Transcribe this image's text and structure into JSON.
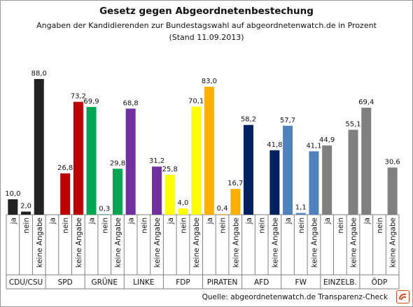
{
  "chart_data": {
    "type": "bar",
    "title": "Gesetz gegen Abgeordnetenbestechung",
    "subtitle_line1": "Angaben der Kandidierenden zur Bundestagswahl auf abgeordnetenwatch.de  in Prozent",
    "subtitle_line2": "(Stand 11.09.2013)",
    "source": "Quelle: abgeordnetenwatch.de Transparenz-Check",
    "response_labels": [
      "ja",
      "nein",
      "keine Angabe"
    ],
    "ylim": [
      0,
      90
    ],
    "grid": false,
    "legend": "none",
    "parties": [
      {
        "name": "CDU/CSU",
        "values": [
          10.0,
          2.0,
          88.0
        ],
        "labels": [
          "10,0",
          "2,0",
          "88,0"
        ],
        "color": "#222222"
      },
      {
        "name": "SPD",
        "values": [
          null,
          26.8,
          73.2
        ],
        "labels": [
          "",
          "26,8",
          "73,2"
        ],
        "color": "#c00000"
      },
      {
        "name": "GRÜNE",
        "values": [
          69.9,
          0.3,
          29.8
        ],
        "labels": [
          "69,9",
          "0,3",
          "29,8"
        ],
        "color": "#00a651"
      },
      {
        "name": "LINKE",
        "values": [
          68.8,
          null,
          31.2
        ],
        "labels": [
          "68,8",
          "",
          "31,2"
        ],
        "color": "#7030a0"
      },
      {
        "name": "FDP",
        "values": [
          25.8,
          4.0,
          70.1
        ],
        "labels": [
          "25,8",
          "4,0",
          "70,1"
        ],
        "color": "#ffff00"
      },
      {
        "name": "PIRATEN",
        "values": [
          83.0,
          0.4,
          16.7
        ],
        "labels": [
          "83,0",
          "0,4",
          "16,7"
        ],
        "color": "#ffb000"
      },
      {
        "name": "AFD",
        "values": [
          58.2,
          null,
          41.8
        ],
        "labels": [
          "58,2",
          "",
          "41,8"
        ],
        "color": "#002060"
      },
      {
        "name": "FW",
        "values": [
          57.7,
          1.1,
          41.1
        ],
        "labels": [
          "57,7",
          "1,1",
          "41,1"
        ],
        "color": "#4f81bd"
      },
      {
        "name": "EINZELB.",
        "values": [
          44.9,
          null,
          55.1
        ],
        "labels": [
          "44,9",
          "",
          "55,1"
        ],
        "color": "#808080"
      },
      {
        "name": "ÖDP",
        "values": [
          69.4,
          null,
          30.6
        ],
        "labels": [
          "69,4",
          "",
          "30,6"
        ],
        "color": "#808080"
      }
    ]
  }
}
